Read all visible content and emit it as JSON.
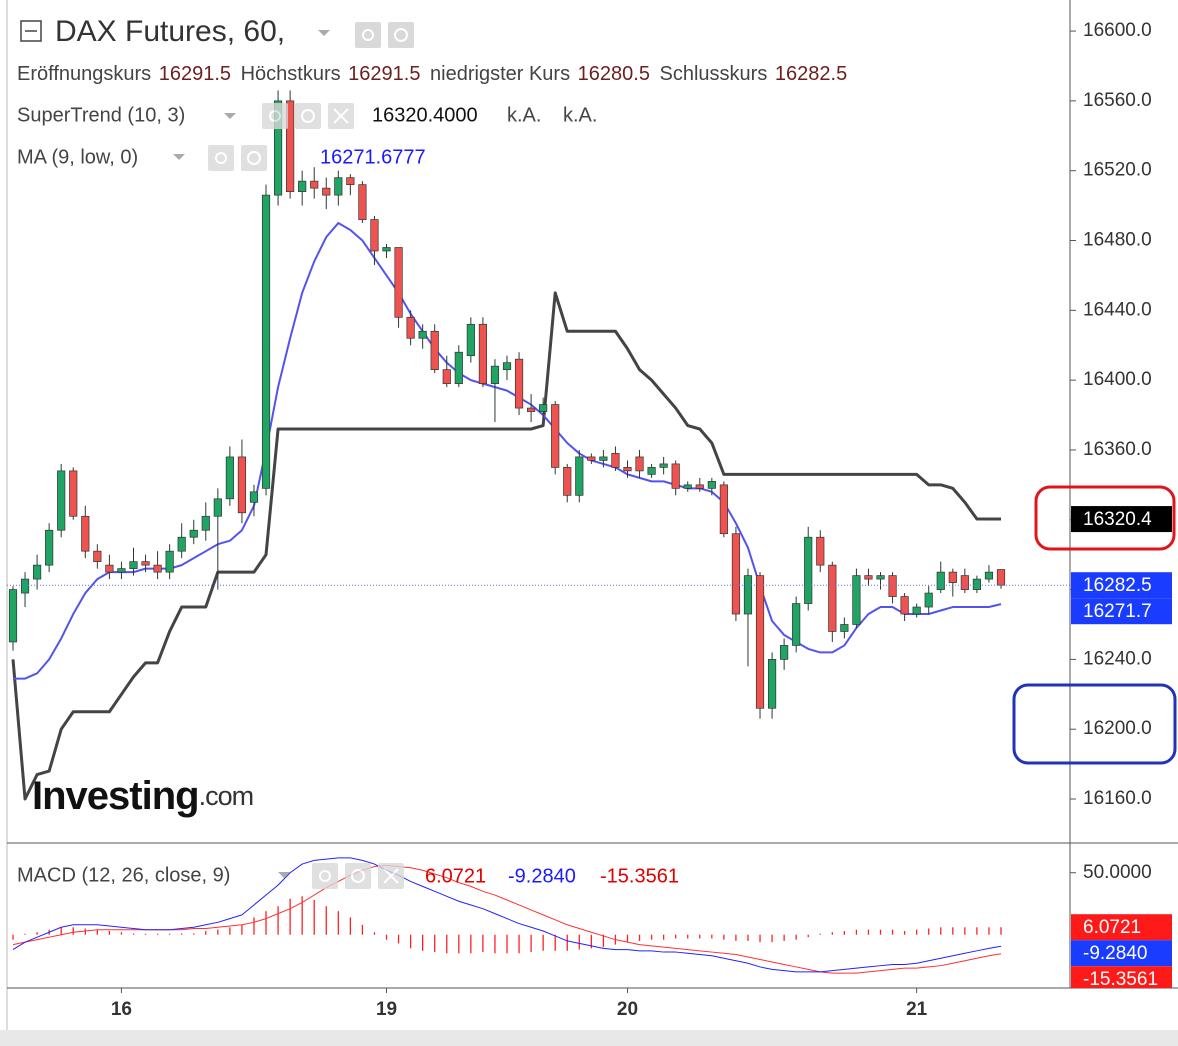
{
  "chart_data": {
    "type": "candlestick",
    "title": "DAX Futures, 60,",
    "ohlc_labels": [
      "Eröffnungskurs",
      "Höchstkurs",
      "niedrigster Kurs",
      "Schlusskurs"
    ],
    "watermark": [
      "Investing",
      ".com"
    ],
    "categories": [
      null,
      null,
      null,
      null,
      null,
      null,
      null,
      null,
      null,
      "16",
      null,
      null,
      null,
      null,
      null,
      null,
      null,
      null,
      null,
      null,
      null,
      null,
      null,
      null,
      null,
      null,
      null,
      null,
      null,
      null,
      null,
      "19",
      null,
      null,
      null,
      null,
      null,
      null,
      null,
      null,
      null,
      null,
      null,
      null,
      null,
      null,
      null,
      null,
      null,
      null,
      null,
      "20",
      null,
      null,
      null,
      null,
      null,
      null,
      null,
      null,
      null,
      null,
      null,
      null,
      null,
      null,
      null,
      null,
      null,
      null,
      null,
      null,
      null,
      null,
      null,
      "21",
      null,
      null,
      null,
      null,
      null,
      null,
      null
    ],
    "open": [
      16250,
      16278,
      16286,
      16294,
      16314,
      16348,
      16322,
      16302,
      16294,
      16290,
      16292,
      16296,
      16294,
      16290,
      16302,
      16310,
      16314,
      16322,
      16332,
      16356,
      16330,
      16338,
      16506,
      16560,
      16508,
      16514,
      16510,
      16506,
      16516,
      16512,
      16492,
      16474,
      16476,
      16436,
      16424,
      16428,
      16406,
      16398,
      16414,
      16432,
      16398,
      16406,
      16412,
      16384,
      16382,
      16386,
      16350,
      16334,
      16356,
      16354,
      16358,
      16350,
      16356,
      16346,
      16350,
      16352,
      16338,
      16340,
      16338,
      16340,
      16312,
      16266,
      16288,
      16212,
      16240,
      16248,
      16272,
      16310,
      16294,
      16256,
      16260,
      16288,
      16286,
      16288,
      16276,
      16266,
      16270,
      16280,
      16290,
      16288,
      16280,
      16286,
      16291.5
    ],
    "high": [
      16282,
      16290,
      16300,
      16318,
      16352,
      16350,
      16328,
      16306,
      16300,
      16296,
      16304,
      16300,
      16302,
      16306,
      16318,
      16320,
      16330,
      16338,
      16362,
      16366,
      16340,
      16512,
      16566,
      16566,
      16520,
      16522,
      16516,
      16520,
      16518,
      16514,
      16494,
      16478,
      16476,
      16440,
      16432,
      16432,
      16414,
      16420,
      16436,
      16436,
      16412,
      16414,
      16416,
      16392,
      16390,
      16388,
      16352,
      16360,
      16358,
      16360,
      16362,
      16354,
      16360,
      16352,
      16356,
      16354,
      16342,
      16344,
      16344,
      16342,
      16316,
      16292,
      16290,
      16244,
      16252,
      16276,
      16316,
      16314,
      16296,
      16264,
      16292,
      16292,
      16290,
      16290,
      16278,
      16272,
      16282,
      16296,
      16292,
      16292,
      16288,
      16294,
      16291.5
    ],
    "low": [
      16245,
      16270,
      16280,
      16290,
      16310,
      16320,
      16298,
      16292,
      16286,
      16286,
      16288,
      16290,
      16286,
      16286,
      16298,
      16306,
      16308,
      16280,
      16328,
      16318,
      16322,
      16334,
      16500,
      16504,
      16500,
      16504,
      16498,
      16500,
      16506,
      16490,
      16466,
      16470,
      16430,
      16420,
      16418,
      16404,
      16396,
      16396,
      16410,
      16396,
      16376,
      16400,
      16380,
      16376,
      16378,
      16346,
      16330,
      16330,
      16352,
      16350,
      16348,
      16344,
      16344,
      16344,
      16346,
      16334,
      16336,
      16336,
      16334,
      16310,
      16262,
      16236,
      16206,
      16206,
      16234,
      16244,
      16268,
      16290,
      16250,
      16252,
      16258,
      16282,
      16280,
      16272,
      16262,
      16264,
      16266,
      16278,
      16276,
      16278,
      16278,
      16284,
      16280.5
    ],
    "close": [
      16280,
      16286,
      16294,
      16314,
      16348,
      16322,
      16302,
      16296,
      16290,
      16292,
      16296,
      16294,
      16290,
      16302,
      16310,
      16314,
      16322,
      16332,
      16356,
      16324,
      16336,
      16506,
      16560,
      16508,
      16514,
      16510,
      16506,
      16516,
      16512,
      16492,
      16474,
      16476,
      16436,
      16424,
      16428,
      16406,
      16398,
      16416,
      16432,
      16398,
      16408,
      16410,
      16384,
      16382,
      16386,
      16350,
      16334,
      16356,
      16354,
      16356,
      16350,
      16348,
      16348,
      16350,
      16352,
      16338,
      16340,
      16338,
      16342,
      16312,
      16266,
      16288,
      16212,
      16240,
      16248,
      16272,
      16310,
      16294,
      16256,
      16260,
      16288,
      16286,
      16288,
      16276,
      16266,
      16270,
      16278,
      16290,
      16284,
      16280,
      16286,
      16290,
      16282.5
    ],
    "up_color": "#1fa463",
    "down_color": "#ef5350",
    "overlays": [
      {
        "name": "SuperTrend (10, 3)",
        "color": "#444444",
        "value_label": "16320.4000",
        "extras": [
          "k.A.",
          "k.A."
        ],
        "values": [
          16240,
          16160,
          16174,
          16176,
          16200,
          16210,
          16210,
          16210,
          16210,
          16220,
          16230,
          16238,
          16238,
          16256,
          16270,
          16270,
          16270,
          16290,
          16290,
          16290,
          16290,
          16300,
          16372,
          16372,
          16372,
          16372,
          16372,
          16372,
          16372,
          16372,
          16372,
          16372,
          16372,
          16372,
          16372,
          16372,
          16372,
          16372,
          16372,
          16372,
          16372,
          16372,
          16372,
          16372,
          16374,
          16450,
          16428,
          16428,
          16428,
          16428,
          16428,
          16418,
          16406,
          16400,
          16392,
          16384,
          16374,
          16372,
          16364,
          16346,
          16346,
          16346,
          16346,
          16346,
          16346,
          16346,
          16346,
          16346,
          16346,
          16346,
          16346,
          16346,
          16346,
          16346,
          16346,
          16346,
          16340,
          16340,
          16338,
          16330,
          16320.4,
          16320.4,
          16320.4
        ]
      },
      {
        "name": "MA (9, low, 0)",
        "color": "#5353f0",
        "values": [
          16229,
          16229,
          16232,
          16240,
          16252,
          16266,
          16278,
          16286,
          16290,
          16290,
          16290,
          16292,
          16292,
          16292,
          16294,
          16298,
          16302,
          16306,
          16308,
          16314,
          16328,
          16360,
          16396,
          16424,
          16450,
          16468,
          16482,
          16490,
          16486,
          16480,
          16470,
          16460,
          16450,
          16438,
          16428,
          16418,
          16410,
          16404,
          16400,
          16398,
          16396,
          16394,
          16390,
          16386,
          16380,
          16372,
          16364,
          16358,
          16354,
          16352,
          16350,
          16346,
          16344,
          16342,
          16342,
          16340,
          16338,
          16338,
          16336,
          16330,
          16318,
          16304,
          16282,
          16262,
          16254,
          16250,
          16246,
          16244,
          16244,
          16248,
          16258,
          16266,
          16270,
          16270,
          16266,
          16266,
          16266,
          16268,
          16270,
          16270,
          16270,
          16270,
          16271.6777
        ]
      }
    ],
    "price_tags": [
      {
        "value": 16320.4,
        "label": "16320.4",
        "color": "#000000"
      },
      {
        "value": 16282.5,
        "label": "16282.5",
        "color": "#1a3cff"
      },
      {
        "value": 16271.7,
        "label": "16271.7",
        "color": "#1a3cff"
      }
    ],
    "ylim": [
      16134.8,
      16617.8
    ],
    "yticks": [
      {
        "value": 16160,
        "label": "16160.0"
      },
      {
        "value": 16200,
        "label": "16200.0"
      },
      {
        "value": 16240,
        "label": "16240.0"
      },
      {
        "value": 16280,
        "label": "16280.0"
      },
      {
        "value": 16320,
        "label": "16320.0"
      },
      {
        "value": 16360,
        "label": "16360.0"
      },
      {
        "value": 16400,
        "label": "16400.0"
      },
      {
        "value": 16440,
        "label": "16440.0"
      },
      {
        "value": 16480,
        "label": "16480.0"
      },
      {
        "value": 16520,
        "label": "16520.0"
      },
      {
        "value": 16560,
        "label": "16560.0"
      },
      {
        "value": 16600,
        "label": "16600.0"
      }
    ],
    "grid": false,
    "macd": {
      "name": "MACD (12, 26, close, 9)",
      "ylim": [
        -43,
        74
      ],
      "yticks": [
        {
          "value": 50,
          "label": "50.0000"
        }
      ],
      "histogram": {
        "color": "#ff2020",
        "values": [
          -4,
          0,
          2,
          4,
          6,
          6,
          5,
          4,
          3,
          2,
          1,
          0,
          0,
          0,
          1,
          1,
          3,
          4,
          6,
          8,
          14,
          19,
          23,
          29,
          31,
          28,
          23,
          19,
          14,
          8,
          2,
          -4,
          -7,
          -11,
          -13,
          -14,
          -15,
          -15,
          -15,
          -14,
          -15,
          -15,
          -15,
          -14,
          -13,
          -13,
          -13,
          -12,
          -11,
          -10,
          -8,
          -6,
          -5,
          -4,
          -4,
          -3,
          -3,
          -3,
          -3,
          -4,
          -5,
          -5,
          -6,
          -6,
          -5,
          -4,
          -2,
          0,
          2,
          3,
          4,
          4,
          4,
          4,
          3,
          4,
          5,
          6,
          6,
          6,
          6,
          6,
          6.0721
        ]
      },
      "macd": {
        "color": "#2222ff",
        "value_label": "-9.2840",
        "values": [
          -12,
          -6,
          -2,
          2,
          6,
          8,
          8,
          8,
          7,
          6,
          5,
          4,
          4,
          4,
          5,
          6,
          8,
          10,
          13,
          16,
          24,
          32,
          40,
          50,
          57,
          60,
          61,
          62,
          62,
          60,
          57,
          52,
          48,
          43,
          39,
          35,
          31,
          27,
          24,
          21,
          17,
          13,
          9,
          6,
          3,
          -1,
          -5,
          -7,
          -9,
          -11,
          -12,
          -12,
          -13,
          -13,
          -14,
          -14,
          -15,
          -16,
          -17,
          -19,
          -21,
          -23,
          -26,
          -28,
          -29,
          -30,
          -30,
          -30,
          -29,
          -28,
          -27,
          -26,
          -25,
          -24,
          -24,
          -23,
          -21,
          -19,
          -17,
          -15,
          -13,
          -11,
          -9.284
        ]
      },
      "signal": {
        "color": "#ff3030",
        "values": [
          -8,
          -6,
          -4,
          -2,
          0,
          2,
          3,
          4,
          4,
          4,
          4,
          4,
          4,
          4,
          4,
          5,
          5,
          6,
          7,
          8,
          10,
          13,
          17,
          21,
          26,
          32,
          38,
          43,
          48,
          52,
          55,
          56,
          55,
          54,
          52,
          49,
          46,
          42,
          39,
          35,
          32,
          28,
          24,
          20,
          16,
          12,
          8,
          5,
          2,
          -1,
          -4,
          -6,
          -8,
          -9,
          -10,
          -11,
          -12,
          -13,
          -14,
          -15,
          -16,
          -18,
          -20,
          -22,
          -24,
          -26,
          -28,
          -30,
          -31,
          -31,
          -31,
          -30,
          -29,
          -28,
          -27,
          -27,
          -26,
          -25,
          -23,
          -21,
          -19,
          -17,
          -15.3561
        ]
      },
      "tags": [
        {
          "value": 6.0721,
          "label": "6.0721",
          "color": "#ff1a1a"
        },
        {
          "value": -9.284,
          "label": "-9.2840",
          "color": "#1a3cff"
        },
        {
          "value": -15.3561,
          "label": "-15.3561",
          "color": "#ff1a1a"
        }
      ]
    }
  }
}
